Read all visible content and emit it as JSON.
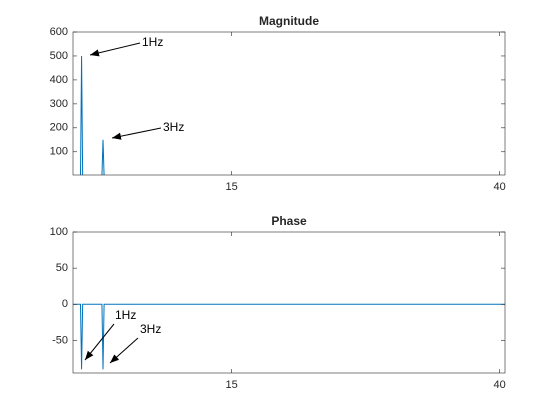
{
  "chart_data": [
    {
      "type": "line",
      "title": "Magnitude",
      "x": [
        0.2,
        0.9,
        1,
        1.1,
        2.9,
        3,
        3.1,
        40.5
      ],
      "series": [
        {
          "color": "#0072bd",
          "values": [
            0,
            0,
            500,
            0,
            0,
            150,
            0,
            0
          ]
        }
      ],
      "xlim": [
        0.2,
        40.5
      ],
      "xticks": [
        15,
        40
      ],
      "ylim": [
        3,
        600
      ],
      "yticks": [
        100,
        200,
        300,
        400,
        500,
        600
      ],
      "annotations": [
        "1Hz",
        "3Hz"
      ]
    },
    {
      "type": "line",
      "title": "Phase",
      "x": [
        0.2,
        0.9,
        1,
        1.1,
        2.9,
        3,
        3.1,
        40.5
      ],
      "series": [
        {
          "color": "#0072bd",
          "values": [
            0,
            0,
            -90,
            0,
            0,
            -90,
            0,
            0
          ]
        }
      ],
      "xlim": [
        0.2,
        40.5
      ],
      "xticks": [
        15,
        40
      ],
      "ylim": [
        -95,
        100
      ],
      "yticks": [
        -50,
        0,
        50,
        100
      ],
      "annotations": [
        "1Hz",
        "3Hz"
      ]
    }
  ]
}
